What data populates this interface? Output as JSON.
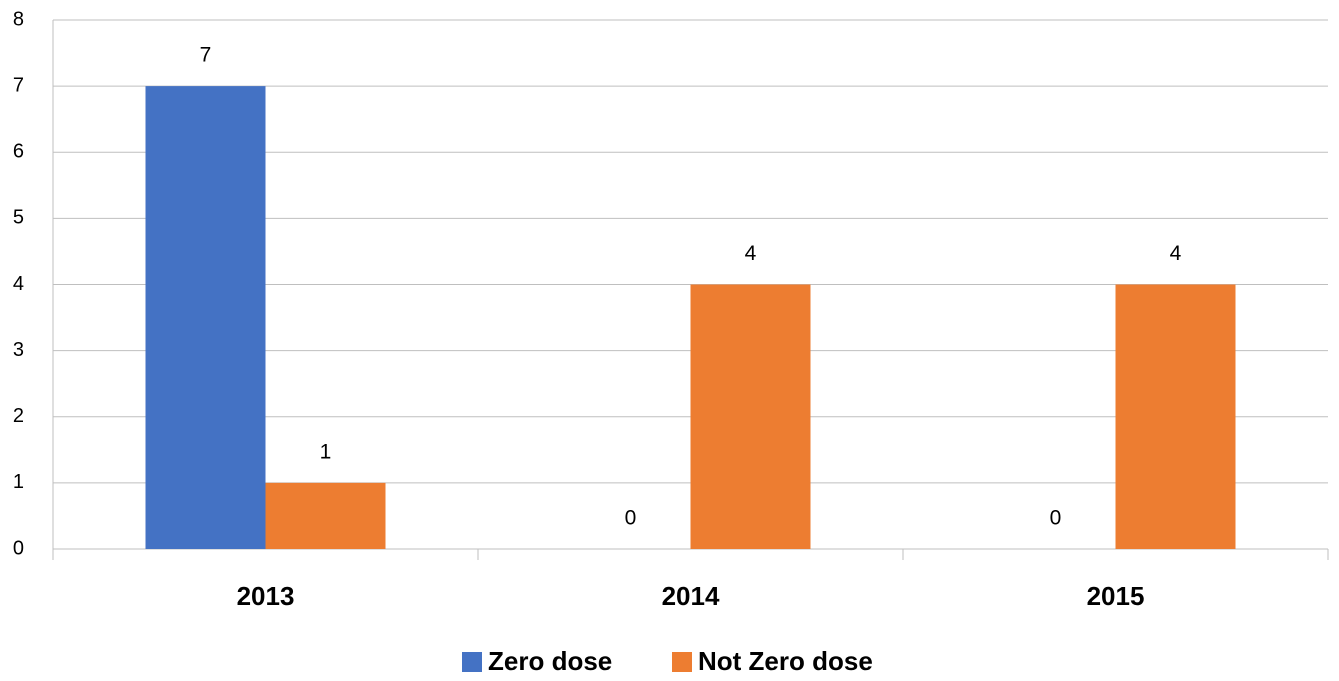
{
  "chart_data": {
    "type": "bar",
    "categories": [
      "2013",
      "2014",
      "2015"
    ],
    "series": [
      {
        "name": "Zero dose",
        "color": "#4472c4",
        "values": [
          7,
          0,
          0
        ]
      },
      {
        "name": "Not Zero dose",
        "color": "#ed7d31",
        "values": [
          1,
          4,
          4
        ]
      }
    ],
    "ylim": [
      0,
      8
    ],
    "yticks": [
      0,
      1,
      2,
      3,
      4,
      5,
      6,
      7,
      8
    ],
    "grid": true,
    "legend": "bottom"
  }
}
